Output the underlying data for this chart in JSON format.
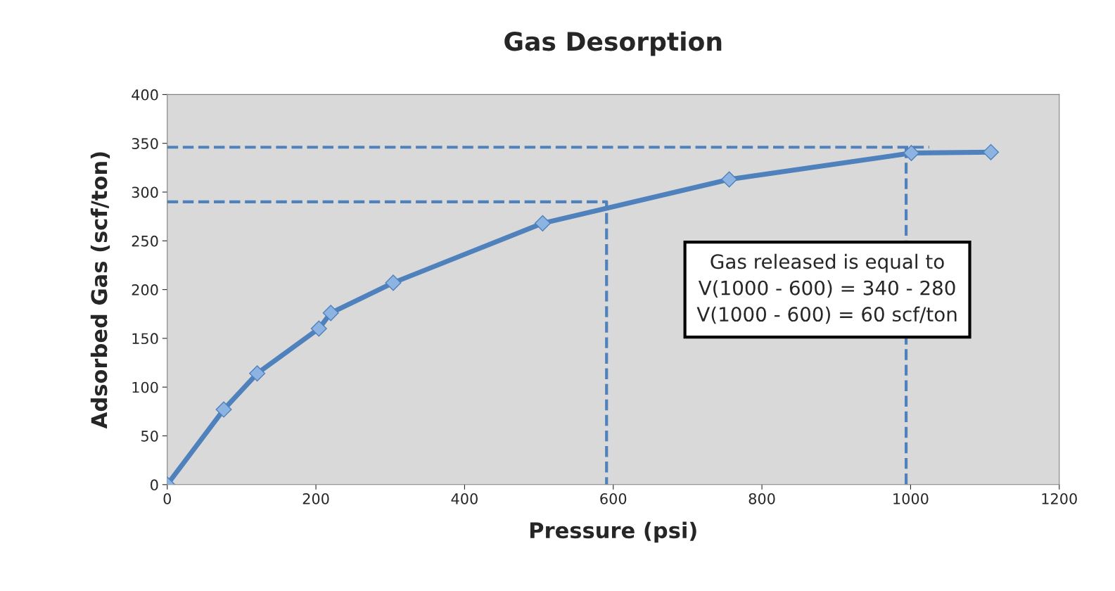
{
  "chart_data": {
    "type": "line",
    "title": "Gas Desorption",
    "xlabel": "Pressure (psi)",
    "ylabel": "Adsorbed Gas (scf/ton)",
    "xlim": [
      0,
      1200
    ],
    "xticks": [
      0,
      200,
      400,
      600,
      800,
      1000,
      1200
    ],
    "ylim": [
      0,
      400
    ],
    "yticks": [
      0,
      50,
      100,
      150,
      200,
      250,
      300,
      350,
      400
    ],
    "grid": false,
    "legend": false,
    "series": [
      {
        "color": "#4f81bd",
        "marker": "diamond",
        "line_style": "solid",
        "x": [
          0,
          76,
          121,
          204,
          220,
          304,
          505,
          756,
          1001,
          1108
        ],
        "values": [
          0,
          77,
          114,
          160,
          176,
          207,
          268,
          313,
          340,
          341
        ]
      },
      {
        "color": "#4f81bd",
        "marker": "none",
        "line_style": "dashed",
        "x": [
          0,
          591,
          591
        ],
        "values": [
          290,
          290,
          0
        ]
      },
      {
        "color": "#4f81bd",
        "marker": "none",
        "line_style": "dashed",
        "x": [
          0,
          1025
        ],
        "values": [
          346,
          346
        ]
      },
      {
        "color": "#4f81bd",
        "marker": "none",
        "line_style": "dashed",
        "x": [
          994,
          994
        ],
        "values": [
          346,
          0
        ]
      }
    ],
    "annotations": [
      "Gas released is equal to\nV(1000 - 600) = 340 - 280\nV(1000 - 600) = 60 scf/ton"
    ]
  }
}
